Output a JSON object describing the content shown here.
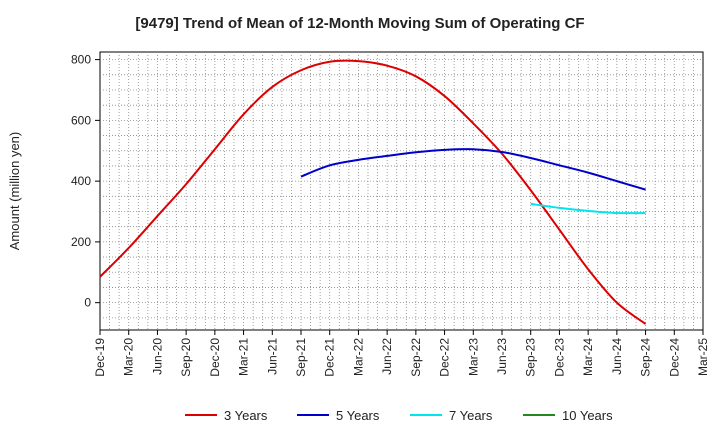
{
  "chart_data": {
    "type": "line",
    "title": "[9479]  Trend of Mean of 12-Month Moving Sum of Operating CF",
    "xlabel": "",
    "ylabel": "Amount (million yen)",
    "ylim": [
      -90,
      825
    ],
    "yticks": [
      0,
      200,
      400,
      600,
      800
    ],
    "categories": [
      "Dec-19",
      "Mar-20",
      "Jun-20",
      "Sep-20",
      "Dec-20",
      "Mar-21",
      "Jun-21",
      "Sep-21",
      "Dec-21",
      "Mar-22",
      "Jun-22",
      "Sep-22",
      "Dec-22",
      "Mar-23",
      "Jun-23",
      "Sep-23",
      "Dec-23",
      "Mar-24",
      "Jun-24",
      "Sep-24",
      "Dec-24",
      "Mar-25"
    ],
    "grid": true,
    "legend_position": "bottom",
    "series": [
      {
        "name": "3 Years",
        "color": "#dd0000",
        "values": [
          85,
          180,
          285,
          390,
          505,
          620,
          710,
          765,
          793,
          795,
          780,
          745,
          680,
          590,
          490,
          370,
          240,
          110,
          0,
          -70,
          null,
          null
        ]
      },
      {
        "name": "5 Years",
        "color": "#0000cc",
        "values": [
          null,
          null,
          null,
          null,
          null,
          null,
          null,
          415,
          452,
          470,
          483,
          495,
          503,
          505,
          496,
          476,
          452,
          428,
          400,
          372,
          null,
          null
        ]
      },
      {
        "name": "7 Years",
        "color": "#00e5ee",
        "values": [
          null,
          null,
          null,
          null,
          null,
          null,
          null,
          null,
          null,
          null,
          null,
          null,
          null,
          null,
          null,
          325,
          312,
          302,
          295,
          295,
          null,
          null
        ]
      },
      {
        "name": "10 Years",
        "color": "#228822",
        "values": [
          null,
          null,
          null,
          null,
          null,
          null,
          null,
          null,
          null,
          null,
          null,
          null,
          null,
          null,
          null,
          null,
          null,
          null,
          null,
          null,
          null,
          null
        ]
      }
    ]
  }
}
